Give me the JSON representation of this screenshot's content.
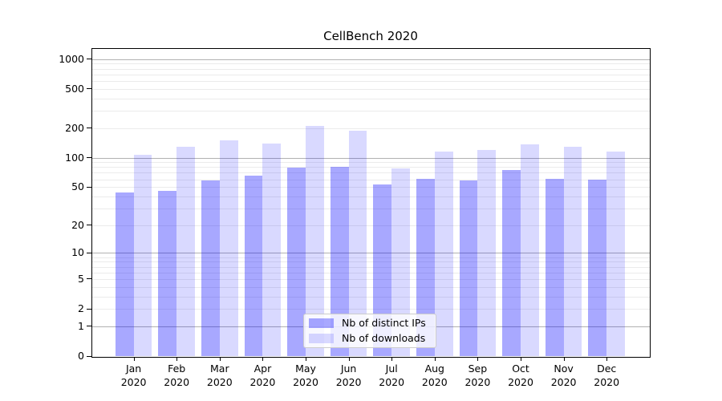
{
  "figure": {
    "title": "CellBench 2020"
  },
  "chart_data": {
    "type": "bar",
    "title": "CellBench 2020",
    "categories": [
      "Jan 2020",
      "Feb 2020",
      "Mar 2020",
      "Apr 2020",
      "May 2020",
      "Jun 2020",
      "Jul 2020",
      "Aug 2020",
      "Sep 2020",
      "Oct 2020",
      "Nov 2020",
      "Dec 2020"
    ],
    "x_tick_line1": [
      "Jan",
      "Feb",
      "Mar",
      "Apr",
      "May",
      "Jun",
      "Jul",
      "Aug",
      "Sep",
      "Oct",
      "Nov",
      "Dec"
    ],
    "x_tick_line2": "2020",
    "series": [
      {
        "name": "Nb of distinct IPs",
        "color": "rgba(0,0,255,0.34)",
        "values": [
          44,
          46,
          58,
          66,
          79,
          80,
          53,
          61,
          58,
          75,
          61,
          60
        ]
      },
      {
        "name": "Nb of downloads",
        "color": "rgba(0,0,255,0.15)",
        "values": [
          106,
          128,
          150,
          138,
          210,
          188,
          78,
          115,
          120,
          136,
          128,
          115
        ]
      }
    ],
    "xlabel": "",
    "ylabel": "",
    "y_scale": "log1p",
    "ylim": [
      0,
      1260
    ],
    "y_ticks": [
      0,
      1,
      2,
      5,
      10,
      20,
      50,
      100,
      200,
      500,
      1000
    ],
    "y_major_gridlines": [
      1,
      10,
      100,
      1000
    ],
    "y_minor_gridlines": [
      2,
      3,
      4,
      5,
      6,
      7,
      8,
      9,
      20,
      30,
      40,
      50,
      60,
      70,
      80,
      90,
      200,
      300,
      400,
      500,
      600,
      700,
      800,
      900
    ],
    "grid": true,
    "legend_position": "lower center"
  },
  "legend": {
    "items": [
      {
        "label": "Nb of distinct IPs",
        "color": "rgba(0,0,255,0.34)"
      },
      {
        "label": "Nb of downloads",
        "color": "rgba(0,0,255,0.15)"
      }
    ]
  },
  "colors": {
    "background": "#ffffff",
    "spine": "#000000",
    "grid_major": "#b1b1b1",
    "grid_minor": "#ebebeb",
    "text": "#000000",
    "legend_border": "#cccccc",
    "legend_background": "rgba(255,255,255,0.8)"
  }
}
